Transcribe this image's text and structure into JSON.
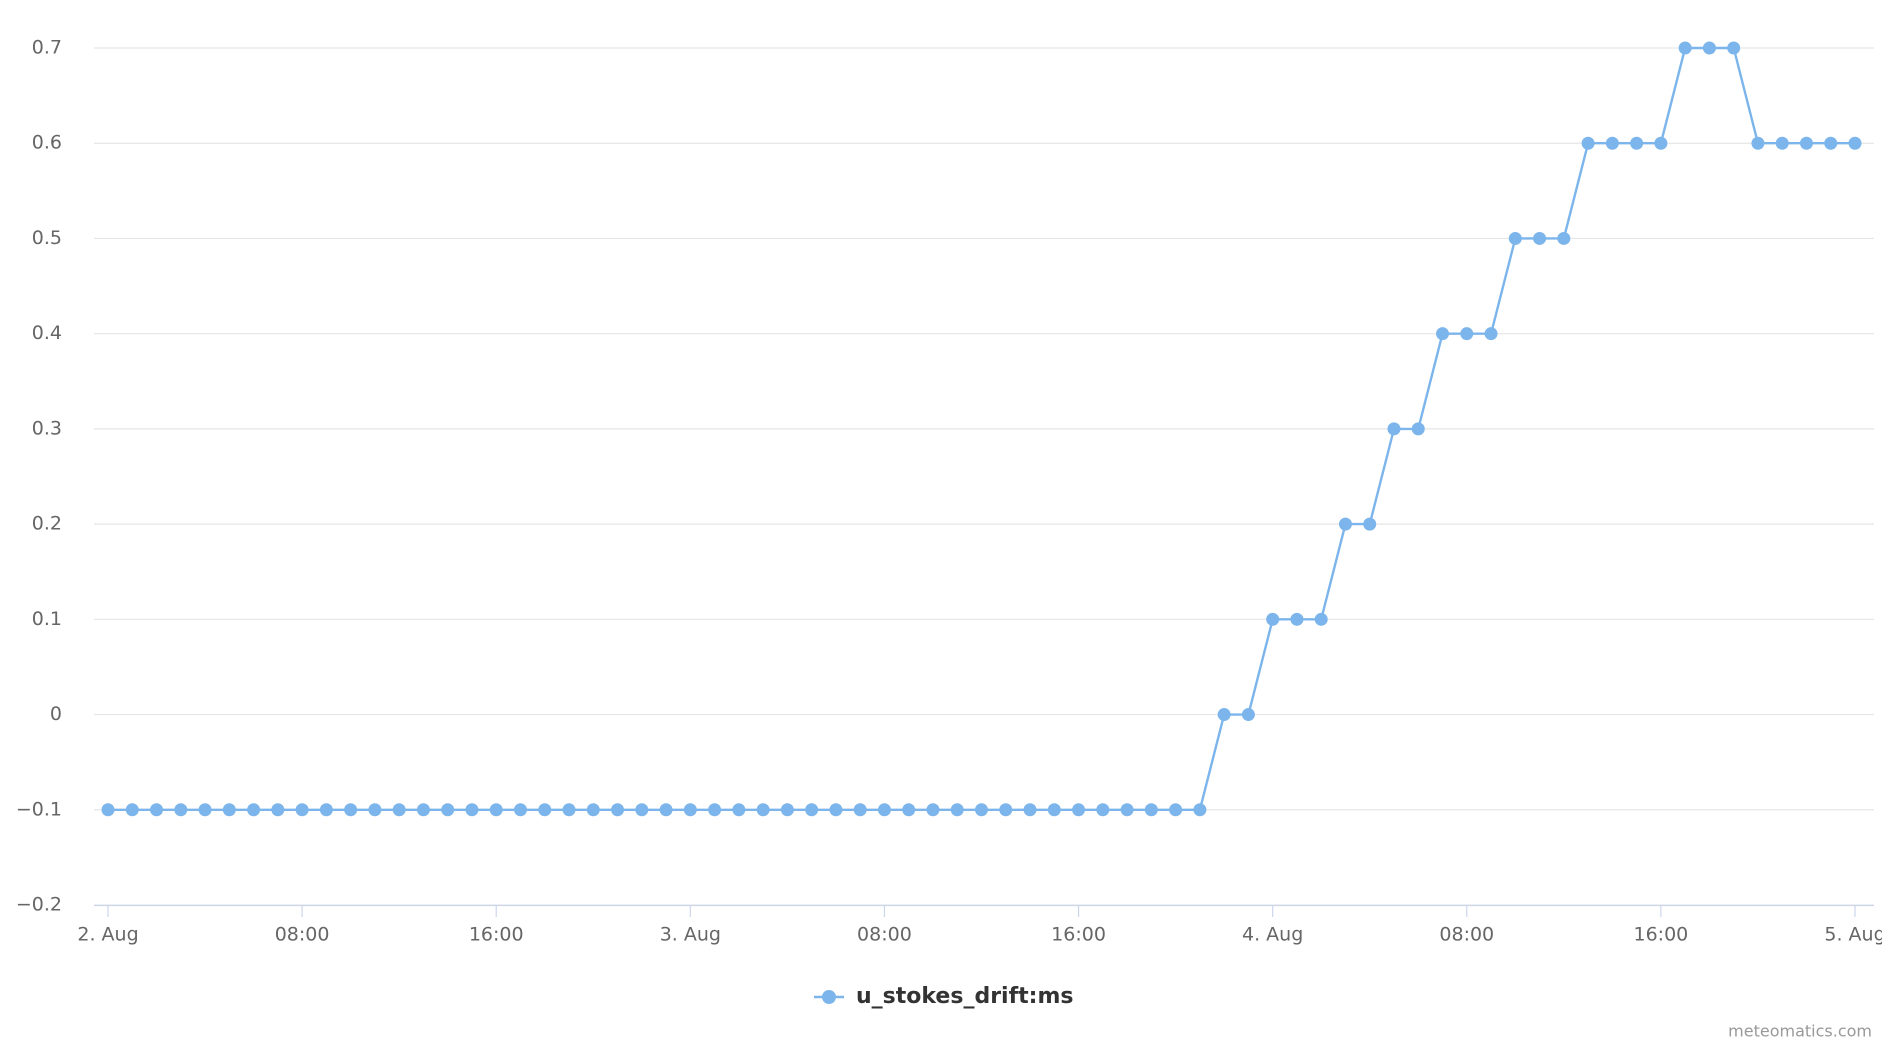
{
  "chart_data": {
    "type": "line",
    "categories": [
      "2. Aug",
      null,
      null,
      null,
      null,
      null,
      null,
      null,
      "08:00",
      null,
      null,
      null,
      null,
      null,
      null,
      null,
      "16:00",
      null,
      null,
      null,
      null,
      null,
      null,
      null,
      "3. Aug",
      null,
      null,
      null,
      null,
      null,
      null,
      null,
      "08:00",
      null,
      null,
      null,
      null,
      null,
      null,
      null,
      "16:00",
      null,
      null,
      null,
      null,
      null,
      null,
      null,
      "4. Aug",
      null,
      null,
      null,
      null,
      null,
      null,
      null,
      "08:00",
      null,
      null,
      null,
      null,
      null,
      null,
      null,
      "16:00",
      null,
      null,
      null,
      null,
      null,
      null,
      null,
      "5. Aug"
    ],
    "series": [
      {
        "name": "u_stokes_drift:ms",
        "color": "#7cb5ec",
        "values": [
          -0.1,
          -0.1,
          -0.1,
          -0.1,
          -0.1,
          -0.1,
          -0.1,
          -0.1,
          -0.1,
          -0.1,
          -0.1,
          -0.1,
          -0.1,
          -0.1,
          -0.1,
          -0.1,
          -0.1,
          -0.1,
          -0.1,
          -0.1,
          -0.1,
          -0.1,
          -0.1,
          -0.1,
          -0.1,
          -0.1,
          -0.1,
          -0.1,
          -0.1,
          -0.1,
          -0.1,
          -0.1,
          -0.1,
          -0.1,
          -0.1,
          -0.1,
          -0.1,
          -0.1,
          -0.1,
          -0.1,
          -0.1,
          -0.1,
          -0.1,
          -0.1,
          -0.1,
          -0.1,
          0,
          0,
          0.1,
          0.1,
          0.1,
          0.2,
          0.2,
          0.3,
          0.3,
          0.4,
          0.4,
          0.4,
          0.5,
          0.5,
          0.5,
          0.6,
          0.6,
          0.6,
          0.6,
          0.7,
          0.7,
          0.7,
          0.6,
          0.6,
          0.6,
          0.6,
          0.6
        ]
      }
    ],
    "ylim": [
      -0.2,
      0.7
    ],
    "yticks": [
      {
        "value": -0.2,
        "label": "−0.2"
      },
      {
        "value": -0.1,
        "label": "−0.1"
      },
      0,
      0.1,
      0.2,
      0.3,
      0.4,
      0.5,
      0.6,
      0.7
    ],
    "grid": true,
    "legend": "bottom",
    "credits": "meteomatics.com"
  }
}
